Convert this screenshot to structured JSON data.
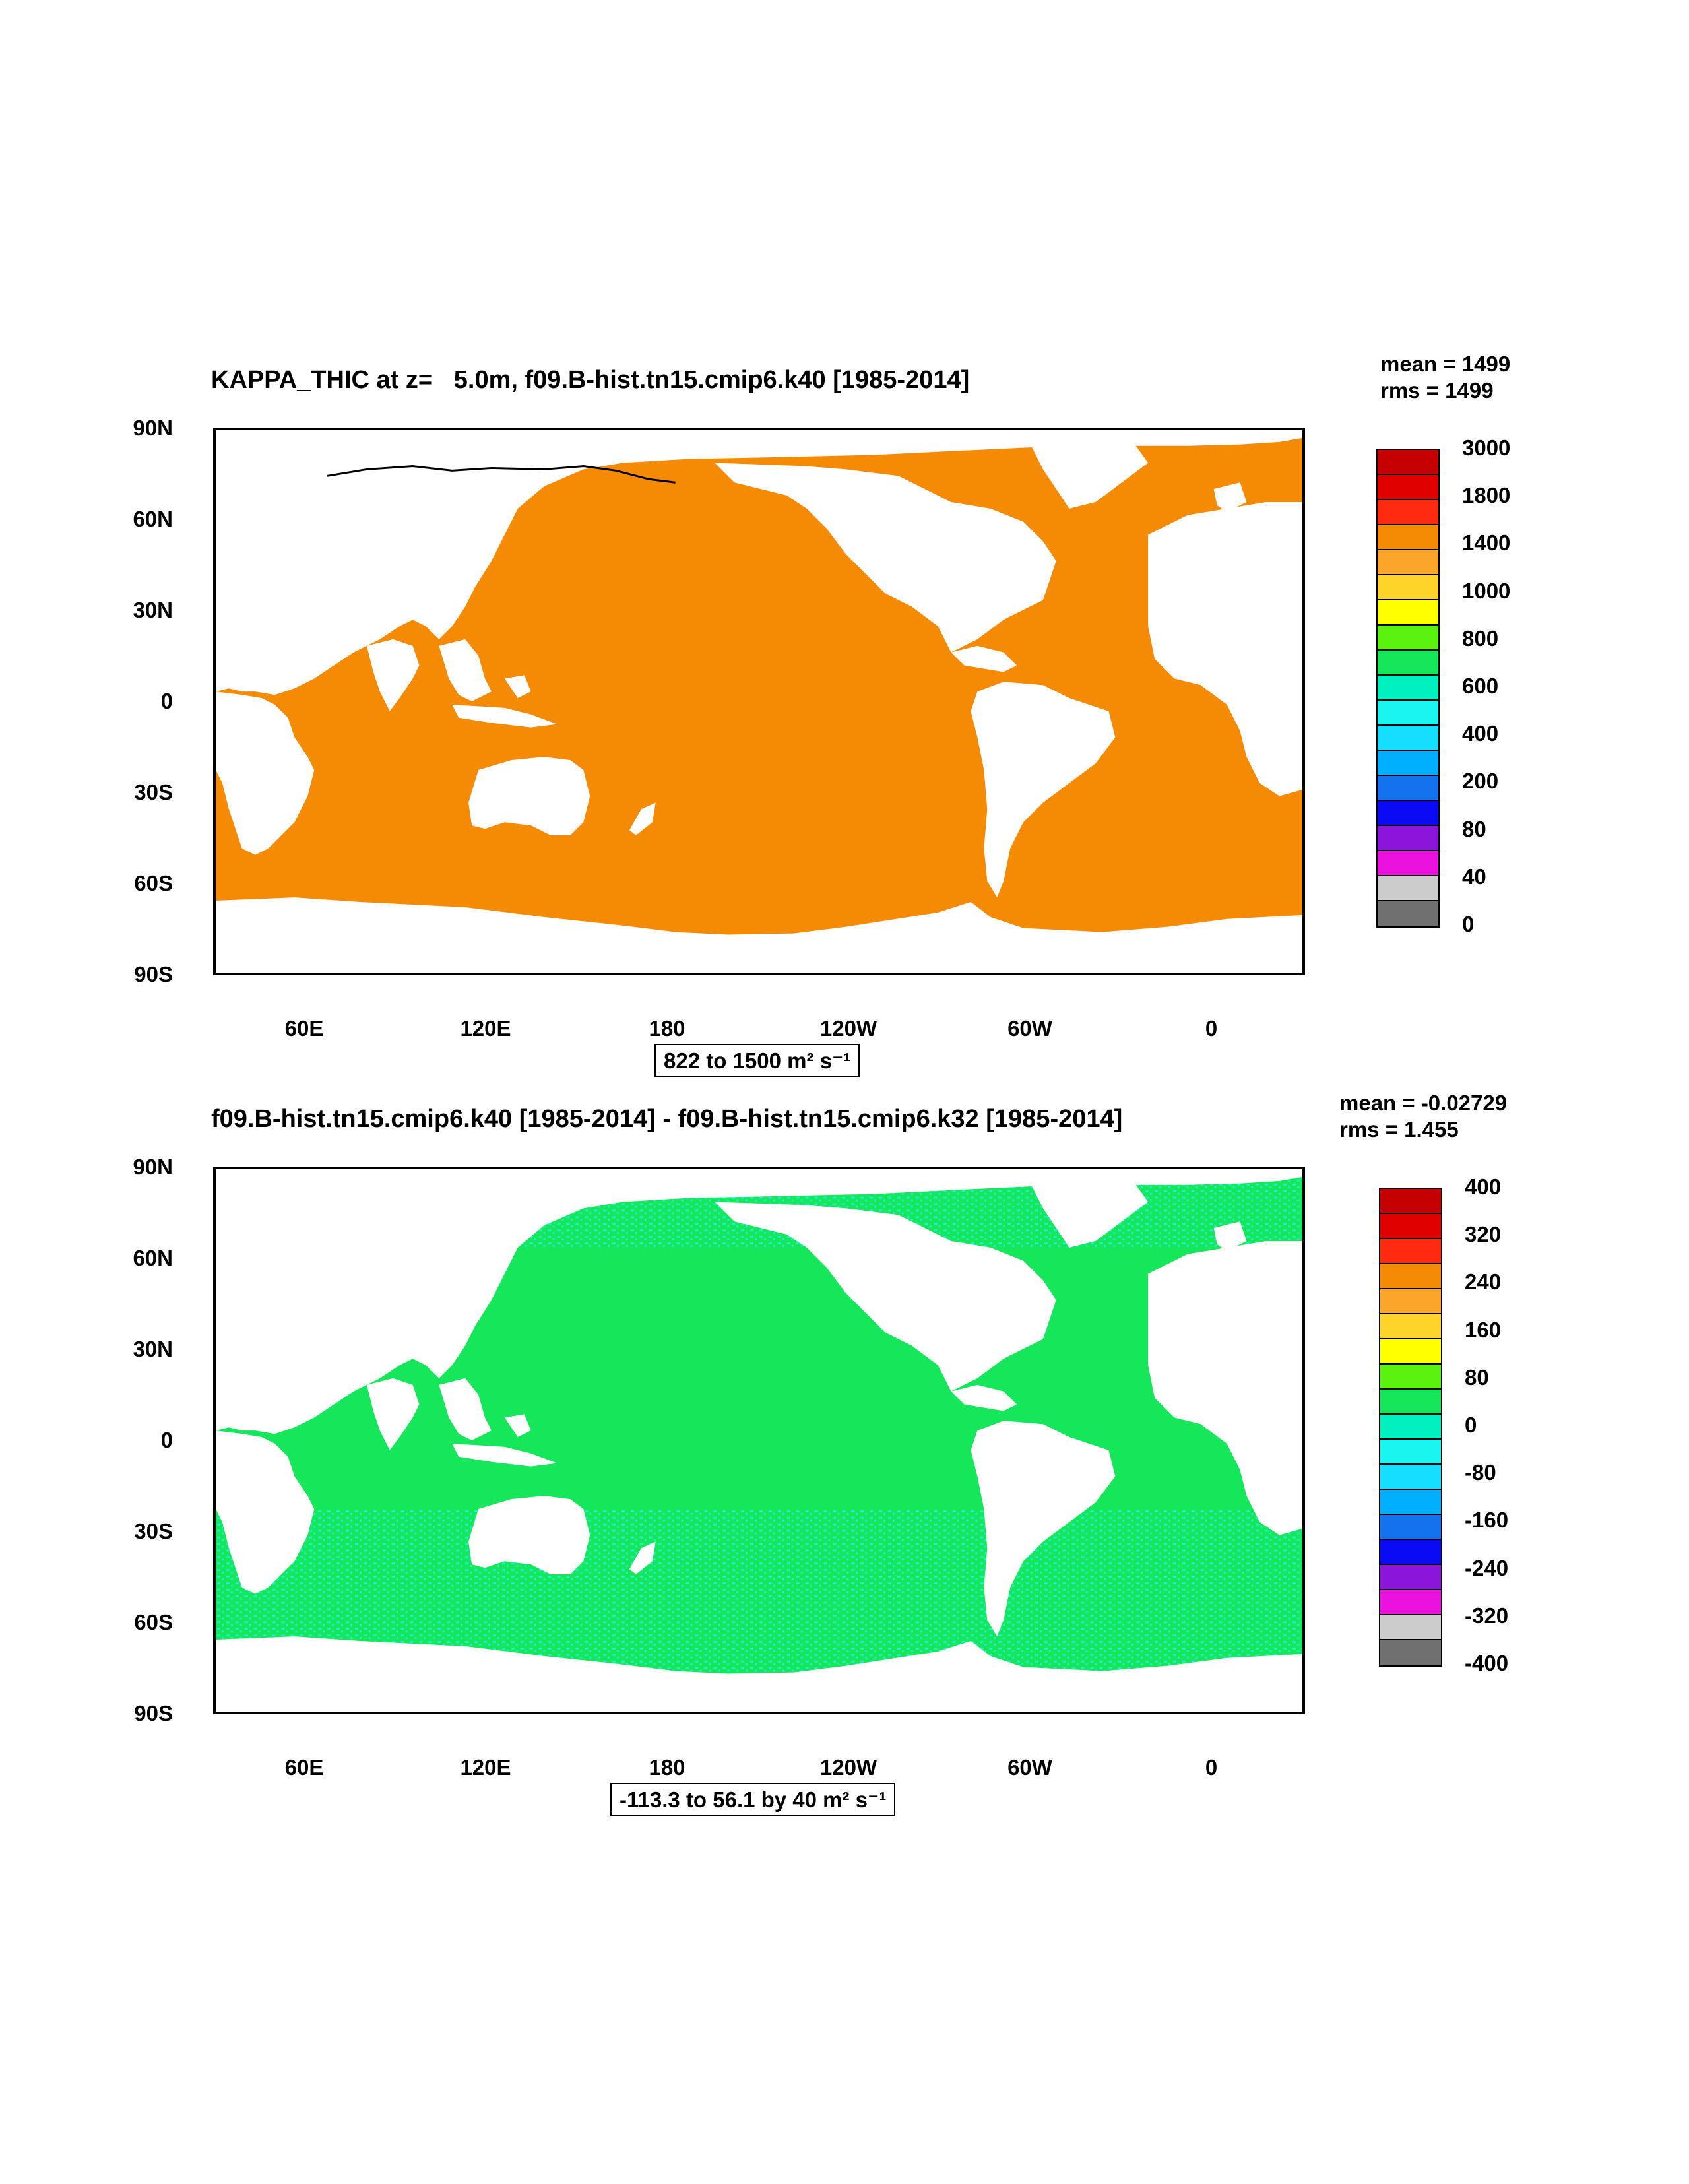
{
  "panel_top": {
    "title": "KAPPA_THIC at z=   5.0m, f09.B-hist.tn15.cmip6.k40 [1985-2014]",
    "mean": "mean = 1499",
    "rms": "rms = 1499",
    "range_label": "822 to 1500 m² s⁻¹",
    "legend_labels": [
      "3000",
      "1800",
      "1400",
      "1000",
      "800",
      "600",
      "400",
      "200",
      "80",
      "40",
      "0"
    ],
    "ocean_color": "#F58A05"
  },
  "panel_bottom": {
    "title": "f09.B-hist.tn15.cmip6.k40 [1985-2014] - f09.B-hist.tn15.cmip6.k32 [1985-2014]",
    "mean": "mean = -0.02729",
    "rms": "rms = 1.455",
    "range_label": "-113.3 to 56.1 by 40 m² s⁻¹",
    "legend_labels": [
      "400",
      "320",
      "240",
      "160",
      "80",
      "0",
      "-80",
      "-160",
      "-240",
      "-320",
      "-400"
    ],
    "ocean_color": "#16E65A",
    "ocean_speckle_color": "#1BF0D0"
  },
  "axes": {
    "lat_labels": [
      "90N",
      "60N",
      "30N",
      "0",
      "30S",
      "60S",
      "90S"
    ],
    "lon_labels": [
      "60E",
      "120E",
      "180",
      "120W",
      "60W",
      "0"
    ]
  },
  "legend_colors": [
    "#C60000",
    "#E00000",
    "#FF2A0F",
    "#F58A05",
    "#FBA52A",
    "#FFD42A",
    "#FFFF00",
    "#5AF20E",
    "#16E65A",
    "#00F0C0",
    "#1BF5F0",
    "#15DEFF",
    "#00B0FF",
    "#1572EE",
    "#0A0AF5",
    "#8C15DC",
    "#EB12E0",
    "#CCCCCC",
    "#707070"
  ],
  "colors": {
    "top_legend": [
      "#C60000",
      "#E00000",
      "#FF2A0F",
      "#F58A05",
      "#FBA52A",
      "#FFD42A",
      "#FFFF00",
      "#5AF20E",
      "#16E65A",
      "#00F0C0",
      "#1BF5F0",
      "#15DEFF",
      "#00B0FF",
      "#1572EE",
      "#0A0AF5",
      "#8C15DC",
      "#EB12E0",
      "#CCCCCC",
      "#707070"
    ],
    "bottom_legend": [
      "#C60000",
      "#E00000",
      "#FF2A0F",
      "#F58A05",
      "#FBA52A",
      "#FFD42A",
      "#FFFF00",
      "#5AF20E",
      "#16E65A",
      "#00F0C0",
      "#1BF5F0",
      "#15DEFF",
      "#00B0FF",
      "#1572EE",
      "#0A0AF5",
      "#8C15DC",
      "#EB12E0",
      "#CCCCCC",
      "#707070"
    ]
  }
}
